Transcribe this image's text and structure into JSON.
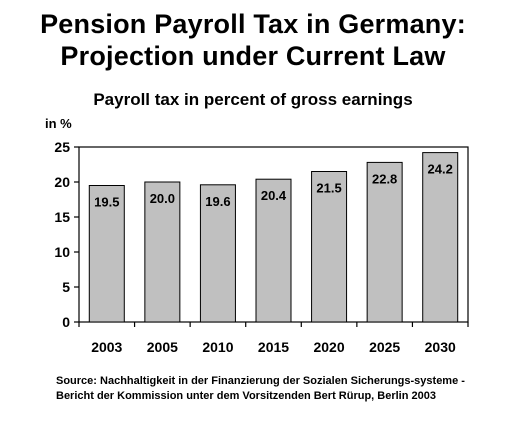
{
  "title_line1": "Pension Payroll Tax in Germany:",
  "title_line2": "Projection under Current Law",
  "subtitle": "Payroll tax in percent of gross earnings",
  "unit_label": "in %",
  "source": "Source: Nachhaltigkeit in der Finanzierung der Sozialen Sicherungs-systeme - Bericht der Kommission unter dem Vorsitzenden Bert Rürup, Berlin 2003",
  "chart_data": {
    "type": "bar",
    "categories": [
      "2003",
      "2005",
      "2010",
      "2015",
      "2020",
      "2025",
      "2030"
    ],
    "values": [
      19.5,
      20.0,
      19.6,
      20.4,
      21.5,
      22.8,
      24.2
    ],
    "data_labels": [
      "19.5",
      "20.0",
      "19.6",
      "20.4",
      "21.5",
      "22.8",
      "24.2"
    ],
    "title": "Payroll tax in percent of gross earnings",
    "ylabel": "in %",
    "ylim": [
      0,
      25
    ],
    "yticks": [
      0,
      5,
      10,
      15,
      20,
      25
    ],
    "grid": false,
    "legend": "none",
    "colors": {
      "bar_fill": "#c0c0c0",
      "bar_stroke": "#000000",
      "frame": "#000000"
    }
  }
}
